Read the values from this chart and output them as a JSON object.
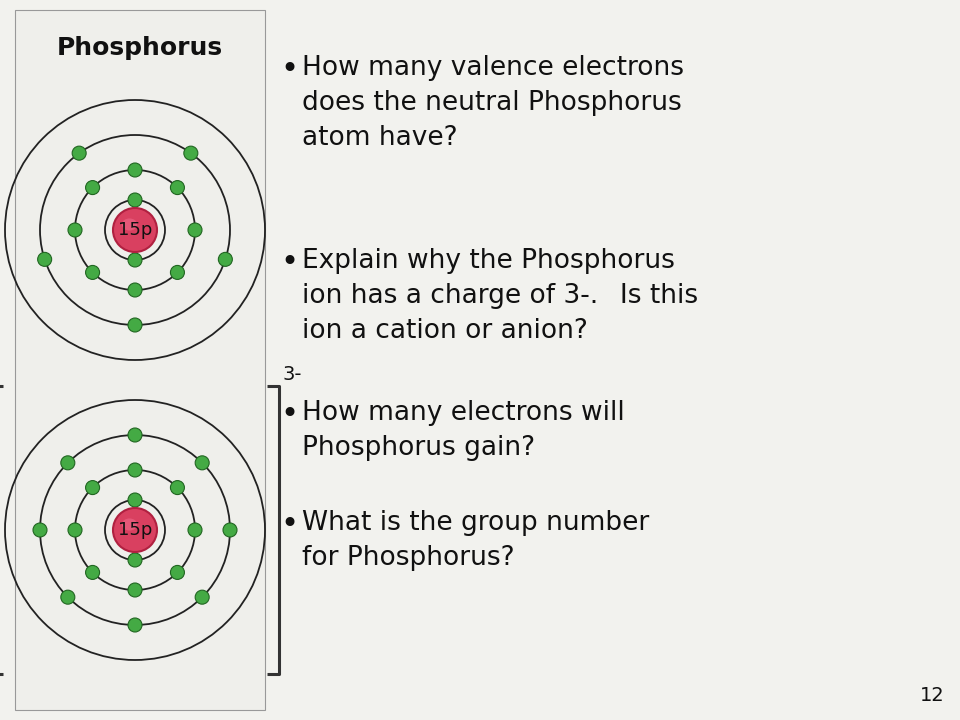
{
  "bg_color": "#f2f2ee",
  "nucleus_facecolor": "#d94060",
  "nucleus_edgecolor": "#b02040",
  "nucleus_highlight": "#f07090",
  "electron_facecolor": "#44aa44",
  "electron_edgecolor": "#226622",
  "orbit_color": "#222222",
  "text_color": "#111111",
  "title": "Phosphorus",
  "label_15p": "15p",
  "bullet_color": "#111111",
  "questions": [
    "How many valence electrons\ndoes the neutral Phosphorus\natom have?",
    "Explain why the Phosphorus\nion has a charge of 3-.  Is this\nion a cation or anion?",
    "How many electrons will\nPhosphorus gain?",
    "What is the group number\nfor Phosphorus?"
  ],
  "charge_label": "3-",
  "page_number": "12",
  "box_facecolor": "#efefeb",
  "box_edgecolor": "#999999",
  "bracket_color": "#333333"
}
